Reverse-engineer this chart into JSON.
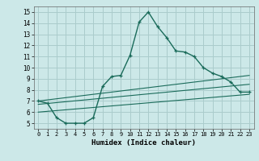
{
  "xlabel": "Humidex (Indice chaleur)",
  "background_color": "#cce8e8",
  "grid_color": "#aacccc",
  "line_color": "#1a6b5a",
  "xlim": [
    -0.5,
    23.5
  ],
  "ylim": [
    4.5,
    15.5
  ],
  "xticks": [
    0,
    1,
    2,
    3,
    4,
    5,
    6,
    7,
    8,
    9,
    10,
    11,
    12,
    13,
    14,
    15,
    16,
    17,
    18,
    19,
    20,
    21,
    22,
    23
  ],
  "yticks": [
    5,
    6,
    7,
    8,
    9,
    10,
    11,
    12,
    13,
    14,
    15
  ],
  "main_x": [
    0,
    1,
    2,
    3,
    4,
    5,
    6,
    7,
    8,
    9,
    10,
    11,
    12,
    13,
    14,
    15,
    16,
    17,
    18,
    19,
    20,
    21,
    22,
    23
  ],
  "main_y": [
    7.0,
    6.8,
    5.5,
    5.0,
    5.0,
    5.0,
    5.5,
    8.3,
    9.2,
    9.3,
    11.1,
    14.1,
    15.0,
    13.7,
    12.7,
    11.5,
    11.4,
    11.0,
    10.0,
    9.5,
    9.2,
    8.7,
    7.8,
    7.8
  ],
  "line1_x": [
    0,
    23
  ],
  "line1_y": [
    7.0,
    9.3
  ],
  "line2_x": [
    0,
    23
  ],
  "line2_y": [
    6.7,
    8.5
  ],
  "line3_x": [
    0,
    23
  ],
  "line3_y": [
    6.0,
    7.6
  ]
}
